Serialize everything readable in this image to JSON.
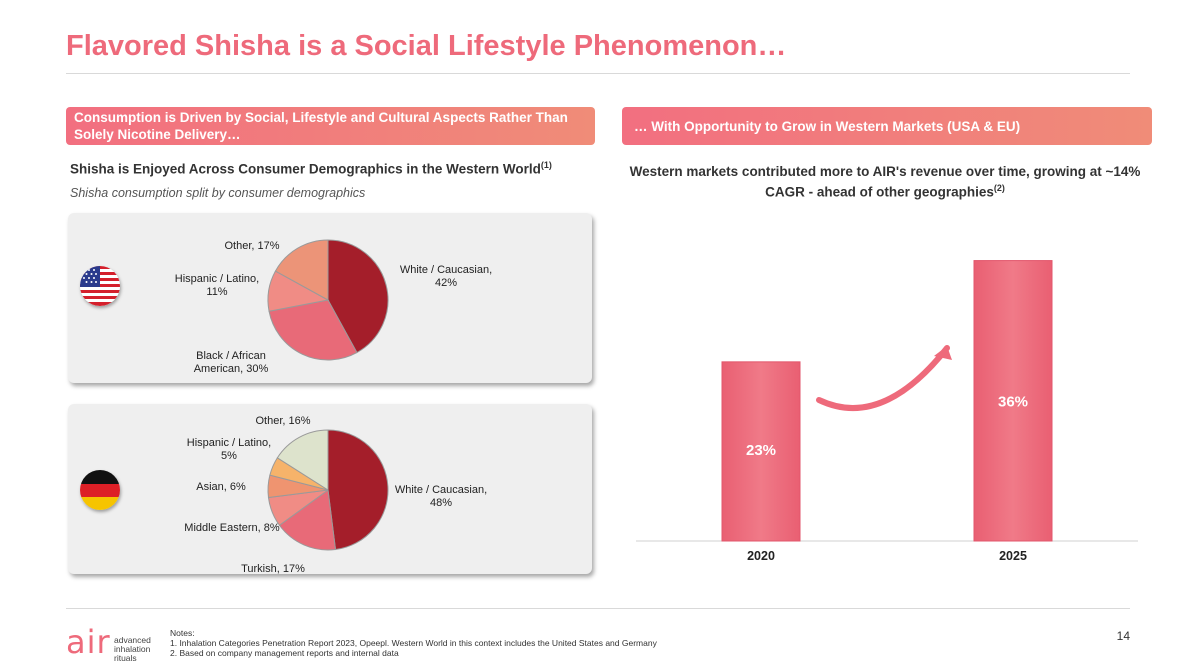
{
  "title": "Flavored Shisha is a Social Lifestyle Phenomenon…",
  "left_banner": "Consumption is Driven by Social, Lifestyle and Cultural Aspects Rather Than Solely Nicotine Delivery…",
  "right_banner": "… With Opportunity to Grow in Western Markets (USA & EU)",
  "left_heading": "Shisha is Enjoyed Across Consumer Demographics in the Western World",
  "left_heading_note": "(1)",
  "left_subheading": "Shisha consumption split by consumer demographics",
  "right_heading": "Western markets contributed more to AIR's revenue over time, growing at ~14% CAGR - ahead of other geographies",
  "right_heading_note": "(2)",
  "notes": {
    "label": "Notes:",
    "items": [
      "1.  Inhalation Categories Penetration Report 2023, Opeepl. Western World in this context includes the United States and Germany",
      "2.  Based on company management reports and internal data"
    ]
  },
  "page_number": "14",
  "logo": {
    "mark": "air",
    "line1": "advanced",
    "line2": "inhalation",
    "line3": "rituals"
  },
  "icons": [
    "usa-flag-icon",
    "germany-flag-icon",
    "growth-arrow-icon"
  ],
  "colors": {
    "accent": "#ee6a7b",
    "dark_red": "#a41e2a",
    "bar": "#ef6e7e"
  },
  "chart_data": [
    {
      "type": "pie",
      "country": "USA",
      "slices": [
        {
          "label": "White / Caucasian",
          "value": 42,
          "text": "White / Caucasian, 42%",
          "color": "#a41e2a"
        },
        {
          "label": "Black / African American",
          "value": 30,
          "text": "Black / African American, 30%",
          "color": "#e86a78"
        },
        {
          "label": "Hispanic / Latino",
          "value": 11,
          "text": "Hispanic / Latino, 11%",
          "color": "#f08c85"
        },
        {
          "label": "Other",
          "value": 17,
          "text": "Other, 17%",
          "color": "#ec9478"
        }
      ]
    },
    {
      "type": "pie",
      "country": "Germany",
      "slices": [
        {
          "label": "White / Caucasian",
          "value": 48,
          "text": "White / Caucasian, 48%",
          "color": "#a41e2a"
        },
        {
          "label": "Turkish",
          "value": 17,
          "text": "Turkish, 17%",
          "color": "#e86a78"
        },
        {
          "label": "Middle Eastern",
          "value": 8,
          "text": "Middle Eastern, 8%",
          "color": "#f08c85"
        },
        {
          "label": "Asian",
          "value": 6,
          "text": "Asian, 6%",
          "color": "#ef9470"
        },
        {
          "label": "Hispanic / Latino",
          "value": 5,
          "text": "Hispanic / Latino, 5%",
          "color": "#f6b36a"
        },
        {
          "label": "Other",
          "value": 16,
          "text": "Other, 16%",
          "color": "#dde3cc"
        }
      ]
    },
    {
      "type": "bar",
      "categories": [
        "2020",
        "2025"
      ],
      "values": [
        23,
        36
      ],
      "value_labels": [
        "23%",
        "36%"
      ],
      "unit": "%",
      "ylim": [
        0,
        38
      ],
      "grid": false
    }
  ]
}
